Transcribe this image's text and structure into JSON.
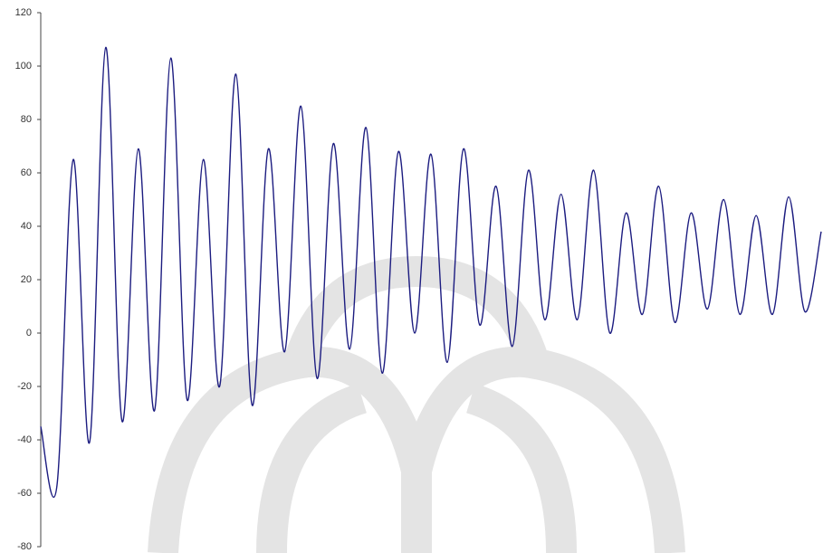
{
  "chart_data": {
    "type": "line",
    "values": [
      -35,
      -57,
      65,
      -41,
      107,
      -33,
      69,
      -29,
      103,
      -25,
      65,
      -20,
      97,
      -27,
      69,
      -7,
      85,
      -17,
      71,
      -6,
      77,
      -15,
      68,
      0,
      67,
      -11,
      69,
      3,
      55,
      -5,
      61,
      5,
      52,
      5,
      61,
      0,
      45,
      7,
      55,
      4,
      45,
      9,
      50,
      7,
      44,
      7,
      51,
      8,
      38
    ],
    "color": "#1c1c80",
    "ylim": [
      -80,
      120
    ],
    "yticks": [
      -80,
      -60,
      -40,
      -20,
      0,
      20,
      40,
      60,
      80,
      100,
      120
    ]
  }
}
